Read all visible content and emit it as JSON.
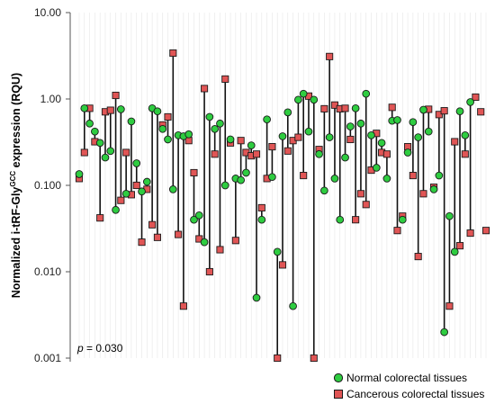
{
  "chart_data": {
    "type": "scatter",
    "y_scale": "log",
    "ylim": [
      0.001,
      10
    ],
    "yticks": [
      "10.00",
      "1.00",
      "0.100",
      "0.010",
      "0.001"
    ],
    "y_tick_values": [
      10,
      1,
      0.1,
      0.01,
      0.001
    ],
    "ylabel": {
      "prefix": "Normalized i-tRF-Gly",
      "superscript": "GCC",
      "suffix": " expression (RQU)"
    },
    "annotation": {
      "italic": "p",
      "text": " = 0.030"
    },
    "legend_position": "bottom-right",
    "grid": "vertical-faint",
    "series": [
      {
        "name": "Normal colorectal tissues",
        "color": "#2ecc40",
        "marker": "circle",
        "values": [
          0.135,
          0.78,
          0.52,
          0.42,
          0.31,
          0.21,
          0.25,
          0.052,
          0.76,
          0.08,
          0.55,
          0.18,
          0.085,
          0.11,
          0.78,
          0.72,
          0.45,
          0.34,
          0.09,
          0.38,
          0.37,
          0.39,
          0.04,
          0.045,
          0.022,
          0.62,
          0.45,
          0.52,
          0.1,
          0.34,
          0.12,
          0.115,
          0.14,
          0.29,
          0.005,
          0.04,
          0.58,
          0.125,
          0.017,
          0.37,
          0.7,
          0.004,
          0.98,
          1.15,
          0.42,
          0.98,
          0.23,
          0.087,
          0.36,
          0.12,
          0.04,
          0.21,
          0.48,
          0.78,
          0.52,
          1.15,
          0.38,
          0.16,
          0.31,
          0.12,
          0.56,
          0.57,
          0.04,
          0.24,
          0.54,
          0.36,
          0.75,
          0.42,
          0.09,
          0.13,
          0.002,
          0.044,
          0.017,
          0.72,
          0.38,
          0.92
        ]
      },
      {
        "name": "Cancerous colorectal tissues",
        "color": "#e05555",
        "marker": "square",
        "values": [
          0.12,
          0.24,
          0.78,
          0.32,
          0.042,
          0.71,
          0.74,
          1.1,
          0.067,
          0.24,
          0.078,
          0.1,
          0.022,
          0.09,
          0.035,
          0.025,
          0.5,
          0.62,
          3.4,
          0.027,
          0.004,
          0.33,
          0.14,
          0.024,
          1.32,
          0.01,
          0.23,
          0.018,
          1.7,
          0.31,
          0.023,
          0.33,
          0.24,
          0.22,
          0.23,
          0.055,
          0.12,
          0.28,
          0.001,
          0.012,
          0.25,
          0.33,
          0.36,
          0.13,
          1.08,
          0.001,
          0.26,
          0.77,
          3.1,
          0.85,
          0.77,
          0.78,
          0.34,
          0.04,
          0.08,
          0.06,
          0.15,
          0.4,
          0.24,
          0.23,
          0.8,
          0.03,
          0.044,
          0.28,
          0.13,
          0.015,
          0.08,
          0.76,
          0.095,
          0.66,
          0.73,
          0.004,
          0.32,
          0.02,
          0.23,
          0.028,
          1.05,
          0.71,
          0.03
        ]
      }
    ]
  }
}
